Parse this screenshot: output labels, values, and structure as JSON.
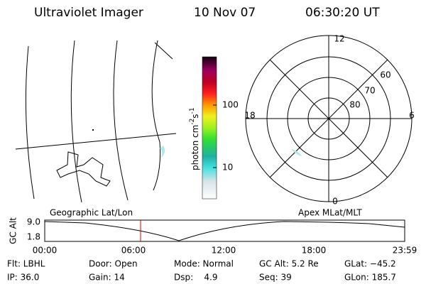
{
  "header": {
    "instrument": "Ultraviolet Imager",
    "date": "10 Nov 07",
    "time": "06:30:20 UT"
  },
  "colorbar": {
    "unit": [
      "photon cm",
      "-2",
      "s",
      "-1"
    ],
    "ticks": [
      "100",
      "10"
    ]
  },
  "polar": {
    "hour_labels": [
      "12",
      "18",
      "6",
      "0"
    ],
    "lat_labels": [
      "60",
      "70",
      "80"
    ]
  },
  "orbit": {
    "left_label": "Geographic Lat/Lon",
    "right_label": "Apex MLat/MLT",
    "axis_label": "GC Alt",
    "y_ticks": [
      "9.0",
      "1.8"
    ],
    "time_ticks": [
      "00:00",
      "06:00",
      "12:00",
      "18:00",
      "23:59"
    ]
  },
  "info": {
    "rows": [
      [
        "Flt: LBHL",
        "Door: Open",
        "Mode: Normal",
        "GC Alt: 5.2 Re",
        "GLat: −45.2"
      ],
      [
        "IP: 36.0",
        "Gain: 14",
        "Dsp:    4.9",
        "Seq: 39",
        "GLon: 185.7"
      ]
    ]
  }
}
